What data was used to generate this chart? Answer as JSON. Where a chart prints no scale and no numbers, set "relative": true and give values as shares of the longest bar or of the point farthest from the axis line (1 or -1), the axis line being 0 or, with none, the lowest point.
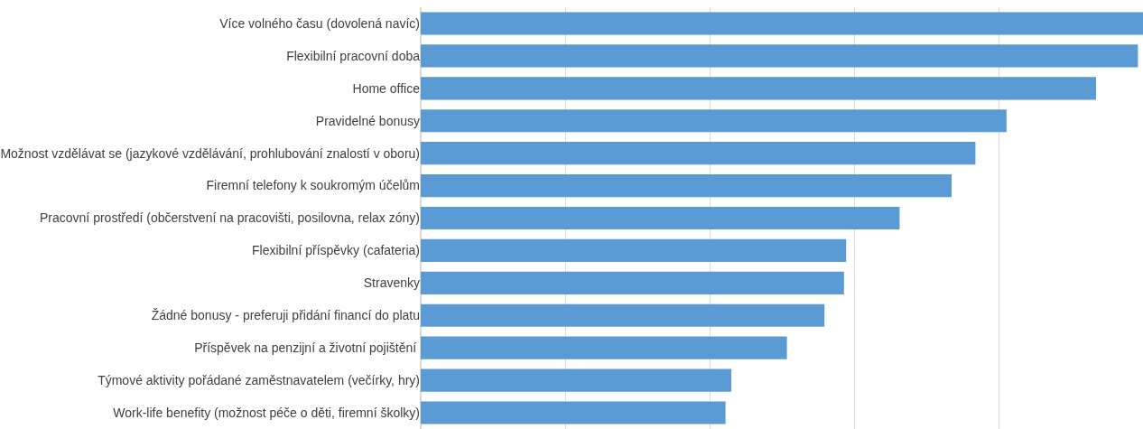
{
  "chart_data": {
    "type": "bar",
    "orientation": "horizontal",
    "relative": true,
    "grid": true,
    "color": "#5b9bd5",
    "categories": [
      "Více volného času (dovolená navíc)",
      "Flexibilní pracovní doba",
      "Home office",
      "Pravidelné bonusy",
      "Možnost vzdělávat se (jazykové vzdělávání, prohlubování znalostí v oboru)",
      "Firemní telefony k soukromým účelům",
      "Pracovní prostředí (občerstvení na pracovišti, posilovna, relax zóny)",
      "Flexibilní příspěvky (cafateria)",
      "Stravenky",
      "Žádné bonusy - preferuji přidání financí do platu",
      "Příspěvek na penzijní a životní pojištění ",
      "Týmové aktivity pořádané zaměstnavatelem (večírky, hry)",
      "Work-life benefity (možnost péče o děti, firemní školky)"
    ],
    "values": [
      1,
      0.993,
      0.935,
      0.811,
      0.768,
      0.735,
      0.663,
      0.589,
      0.586,
      0.559,
      0.507,
      0.43,
      0.422
    ]
  }
}
